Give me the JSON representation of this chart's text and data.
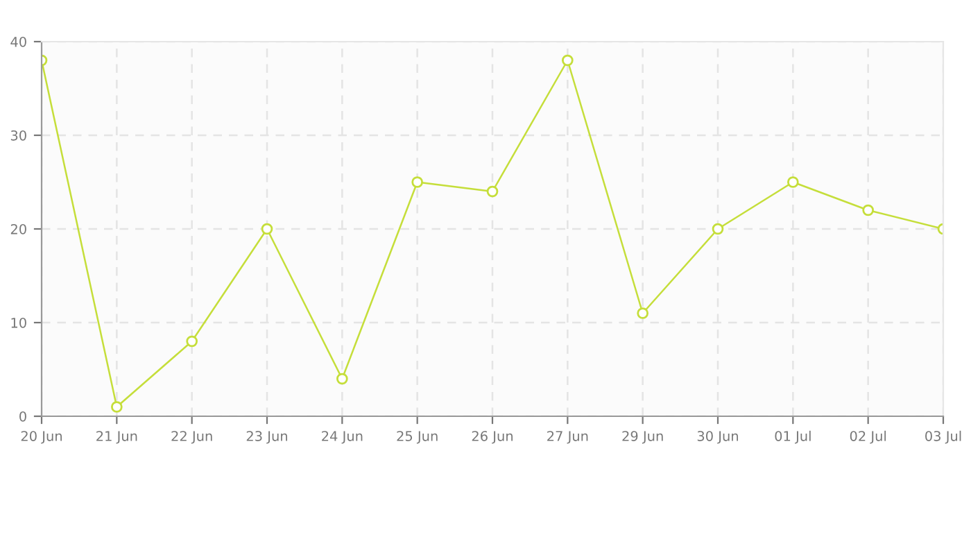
{
  "chart_data": {
    "type": "line",
    "categories": [
      "20 Jun",
      "21 Jun",
      "22 Jun",
      "23 Jun",
      "24 Jun",
      "25 Jun",
      "26 Jun",
      "27 Jun",
      "29 Jun",
      "30 Jun",
      "01 Jul",
      "02 Jul",
      "03 Jul"
    ],
    "series": [
      {
        "color": "#c5de3a",
        "values": [
          38,
          1,
          8,
          20,
          4,
          25,
          24,
          38,
          11,
          20,
          25,
          22,
          20
        ]
      }
    ],
    "ylim": [
      0,
      40
    ],
    "yticks": [
      0,
      10,
      20,
      30,
      40
    ],
    "grid": true,
    "marker": "circle",
    "line_style": "solid",
    "legend": false
  }
}
